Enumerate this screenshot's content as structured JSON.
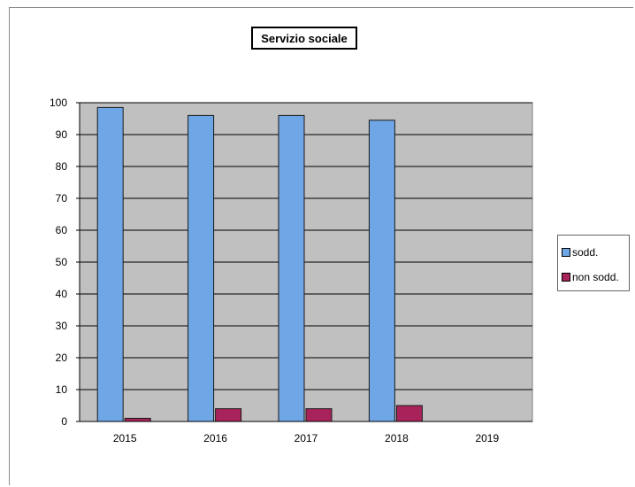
{
  "chart_data": {
    "type": "bar",
    "title": "Servizio sociale",
    "categories": [
      "2015",
      "2016",
      "2017",
      "2018",
      "2019"
    ],
    "series": [
      {
        "name": "sodd.",
        "values": [
          98.5,
          96,
          96,
          94.5,
          null
        ],
        "color": "#6ea6e6"
      },
      {
        "name": "non sodd.",
        "values": [
          1,
          4,
          4,
          5,
          null
        ],
        "color": "#a8235a"
      }
    ],
    "ylim": [
      0,
      100
    ],
    "yticks": [
      0,
      10,
      20,
      30,
      40,
      50,
      60,
      70,
      80,
      90,
      100
    ],
    "xlabel": "",
    "ylabel": "",
    "grid": true,
    "legend_position": "right",
    "plot_background": "#c0c0c0"
  }
}
